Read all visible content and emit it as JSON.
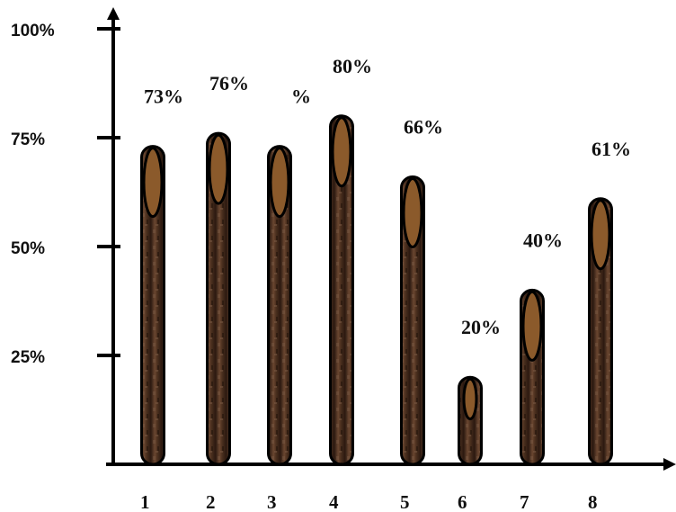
{
  "chart_data": {
    "type": "bar",
    "title": "",
    "xlabel": "",
    "ylabel": "",
    "categories": [
      "1",
      "2",
      "3",
      "4",
      "5",
      "6",
      "7",
      "8"
    ],
    "values": [
      73,
      76,
      73,
      80,
      66,
      20,
      40,
      61
    ],
    "data_labels": [
      "73%",
      "76%",
      "%",
      "80%",
      "66%",
      "20%",
      "40%",
      "61%"
    ],
    "yticks": [
      "100%",
      "75%",
      "50%",
      "25%"
    ],
    "ytick_values": [
      100,
      75,
      50,
      25
    ],
    "ylim": [
      0,
      100
    ],
    "grid": false,
    "legend": "none",
    "colors": {
      "bar_fill": "#4a2f1e",
      "bar_cap": "#8b5a2b",
      "outline": "#000000",
      "axis": "#000000"
    }
  }
}
